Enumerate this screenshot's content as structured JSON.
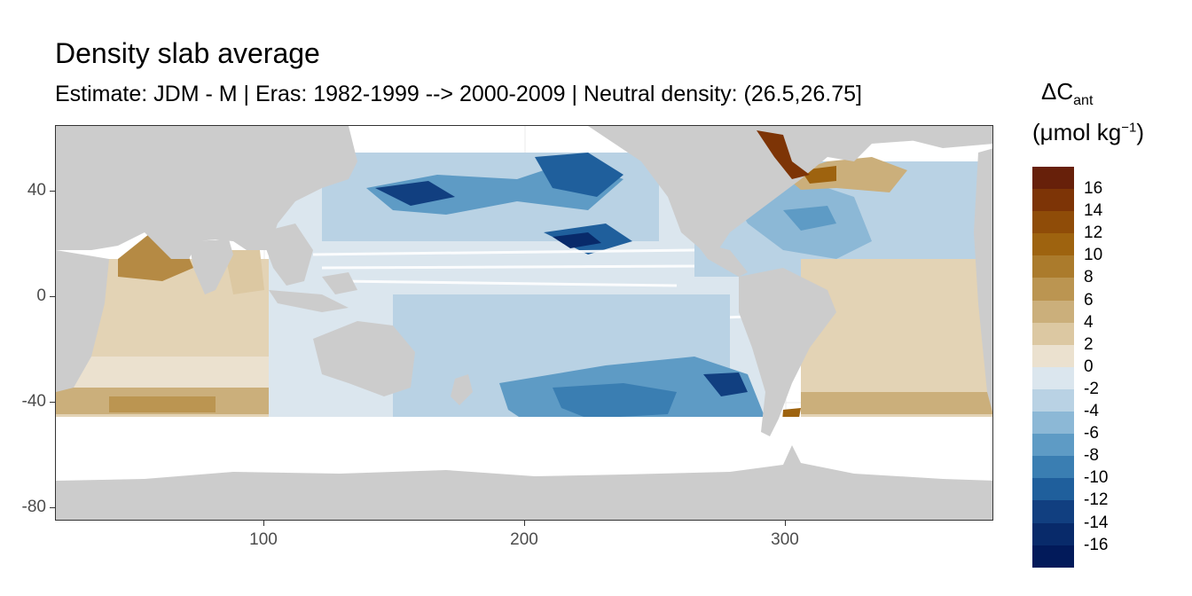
{
  "title": "Density slab average",
  "subtitle": "Estimate: JDM - M | Eras: 1982-1999 --> 2000-2009 | Neutral density: (26.5,26.75]",
  "map": {
    "x_range": [
      20,
      380
    ],
    "y_range": [
      -85,
      65
    ],
    "x_ticks": [
      100,
      200,
      300
    ],
    "y_ticks": [
      40,
      0,
      -40,
      -80
    ],
    "x_tick_labels": [
      "100",
      "200",
      "300"
    ],
    "y_tick_labels": [
      "40",
      "0",
      "-40",
      "-80"
    ],
    "land_color": "#cccccc",
    "background_color": "#ffffff"
  },
  "legend": {
    "title_main": "ΔC",
    "title_sub": "ant",
    "unit_prefix": "(μmol kg",
    "unit_sup": "−1",
    "unit_suffix": ")",
    "labels": [
      "16",
      "14",
      "12",
      "10",
      "8",
      "6",
      "4",
      "2",
      "0",
      "-2",
      "-4",
      "-6",
      "-8",
      "-10",
      "-12",
      "-14",
      "-16"
    ],
    "colors": [
      "#67200a",
      "#7d3406",
      "#8f4c08",
      "#9e630f",
      "#ab7b2c",
      "#bb9551",
      "#cbaf7b",
      "#dcc8a2",
      "#ebe1cf",
      "#dbe6ee",
      "#b9d2e4",
      "#8cb8d6",
      "#5e9bc5",
      "#3a7eb2",
      "#1f5f9c",
      "#113f80",
      "#082a6a",
      "#021a5a"
    ]
  }
}
